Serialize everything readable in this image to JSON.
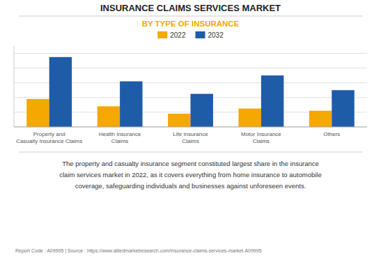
{
  "chart_data": {
    "type": "bar",
    "title": "INSURANCE CLAIMS SERVICES MARKET",
    "subtitle": "BY TYPE OF INSURANCE",
    "subtitle_color": "#F5A800",
    "categories": [
      "Property and\nCasualty Insurance Claims",
      "Health Insurance\nClaims",
      "Life Insurance\nClaims",
      "Motor Insurance\nClaims",
      "Others"
    ],
    "series": [
      {
        "name": "2022",
        "color": "#F5A800",
        "values": [
          3.8,
          2.8,
          1.8,
          2.5,
          2.2
        ]
      },
      {
        "name": "2032",
        "color": "#1F5CA8",
        "values": [
          9.5,
          6.2,
          4.5,
          7.0,
          5.0
        ]
      }
    ],
    "ylim": [
      0,
      11
    ],
    "yticks": [
      0,
      2,
      4,
      6,
      8,
      10
    ],
    "grid": true,
    "legend": "top",
    "tick_labels": "x",
    "annotations": [
      "The property and casualty insurance segment constituted largest share in the insurance\nclaim services market in 2022, as it covers everything from home insurance to automobile\ncoverage, safeguarding individuals and businesses against unforeseen events.",
      "Report Code : A09995  |  Source : https://www.alliedmarketresearch.com/insurance-claims-services-market-A09995"
    ]
  }
}
